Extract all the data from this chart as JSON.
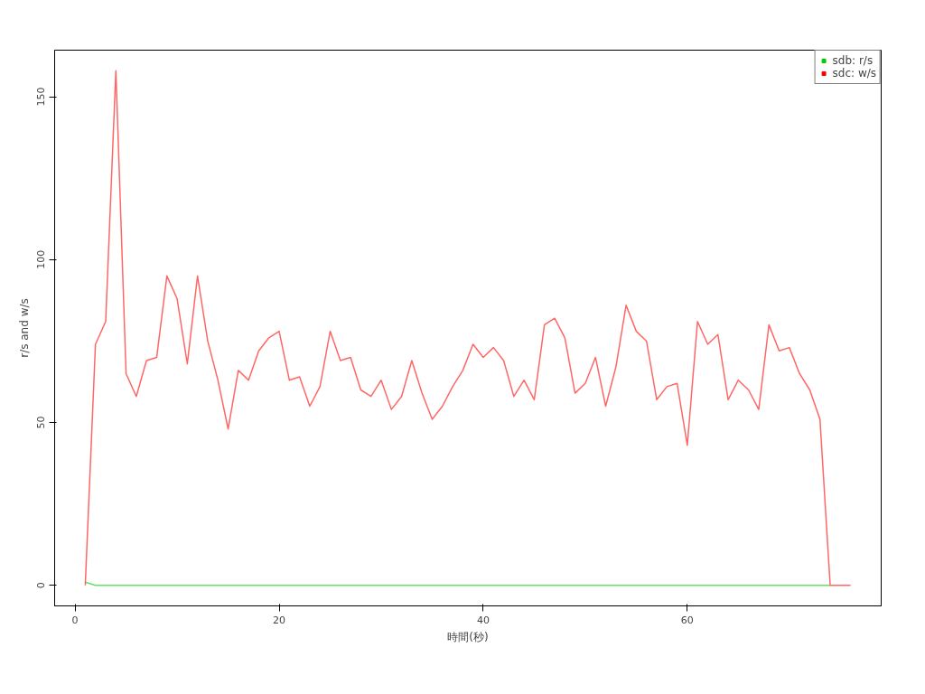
{
  "chart_data": {
    "type": "line",
    "xlabel": "時間(秒)",
    "ylabel": "r/s and w/s",
    "x": [
      1,
      2,
      3,
      4,
      5,
      6,
      7,
      8,
      9,
      10,
      11,
      12,
      13,
      14,
      15,
      16,
      17,
      18,
      19,
      20,
      21,
      22,
      23,
      24,
      25,
      26,
      27,
      28,
      29,
      30,
      31,
      32,
      33,
      34,
      35,
      36,
      37,
      38,
      39,
      40,
      41,
      42,
      43,
      44,
      45,
      46,
      47,
      48,
      49,
      50,
      51,
      52,
      53,
      54,
      55,
      56,
      57,
      58,
      59,
      60,
      61,
      62,
      63,
      64,
      65,
      66,
      67,
      68,
      69,
      70,
      71,
      72,
      73,
      74,
      75,
      76
    ],
    "series": [
      {
        "name": "sdb: r/s",
        "color": "#00cd00",
        "values": [
          1,
          0,
          0,
          0,
          0,
          0,
          0,
          0,
          0,
          0,
          0,
          0,
          0,
          0,
          0,
          0,
          0,
          0,
          0,
          0,
          0,
          0,
          0,
          0,
          0,
          0,
          0,
          0,
          0,
          0,
          0,
          0,
          0,
          0,
          0,
          0,
          0,
          0,
          0,
          0,
          0,
          0,
          0,
          0,
          0,
          0,
          0,
          0,
          0,
          0,
          0,
          0,
          0,
          0,
          0,
          0,
          0,
          0,
          0,
          0,
          0,
          0,
          0,
          0,
          0,
          0,
          0,
          0,
          0,
          0,
          0,
          0,
          0,
          0,
          null,
          null
        ]
      },
      {
        "name": "sdc: w/s",
        "color": "#ff0000",
        "values": [
          0,
          74,
          81,
          158,
          65,
          58,
          69,
          70,
          95,
          88,
          68,
          95,
          75,
          63,
          48,
          66,
          63,
          72,
          76,
          78,
          63,
          64,
          55,
          61,
          78,
          69,
          70,
          60,
          58,
          63,
          54,
          58,
          69,
          59,
          51,
          55,
          61,
          66,
          74,
          70,
          73,
          69,
          58,
          63,
          57,
          80,
          82,
          76,
          59,
          62,
          70,
          55,
          67,
          86,
          78,
          75,
          57,
          61,
          62,
          43,
          81,
          74,
          77,
          57,
          63,
          60,
          54,
          80,
          72,
          73,
          65,
          60,
          51,
          0,
          0,
          0
        ]
      }
    ],
    "xlim": [
      -2,
      79
    ],
    "ylim": [
      -6.3,
      164.3
    ],
    "xticks": [
      0,
      20,
      40,
      60
    ],
    "yticks": [
      0,
      50,
      100,
      150
    ],
    "grid": false,
    "legend": "top right",
    "marker": "none",
    "line_style": "solid"
  }
}
